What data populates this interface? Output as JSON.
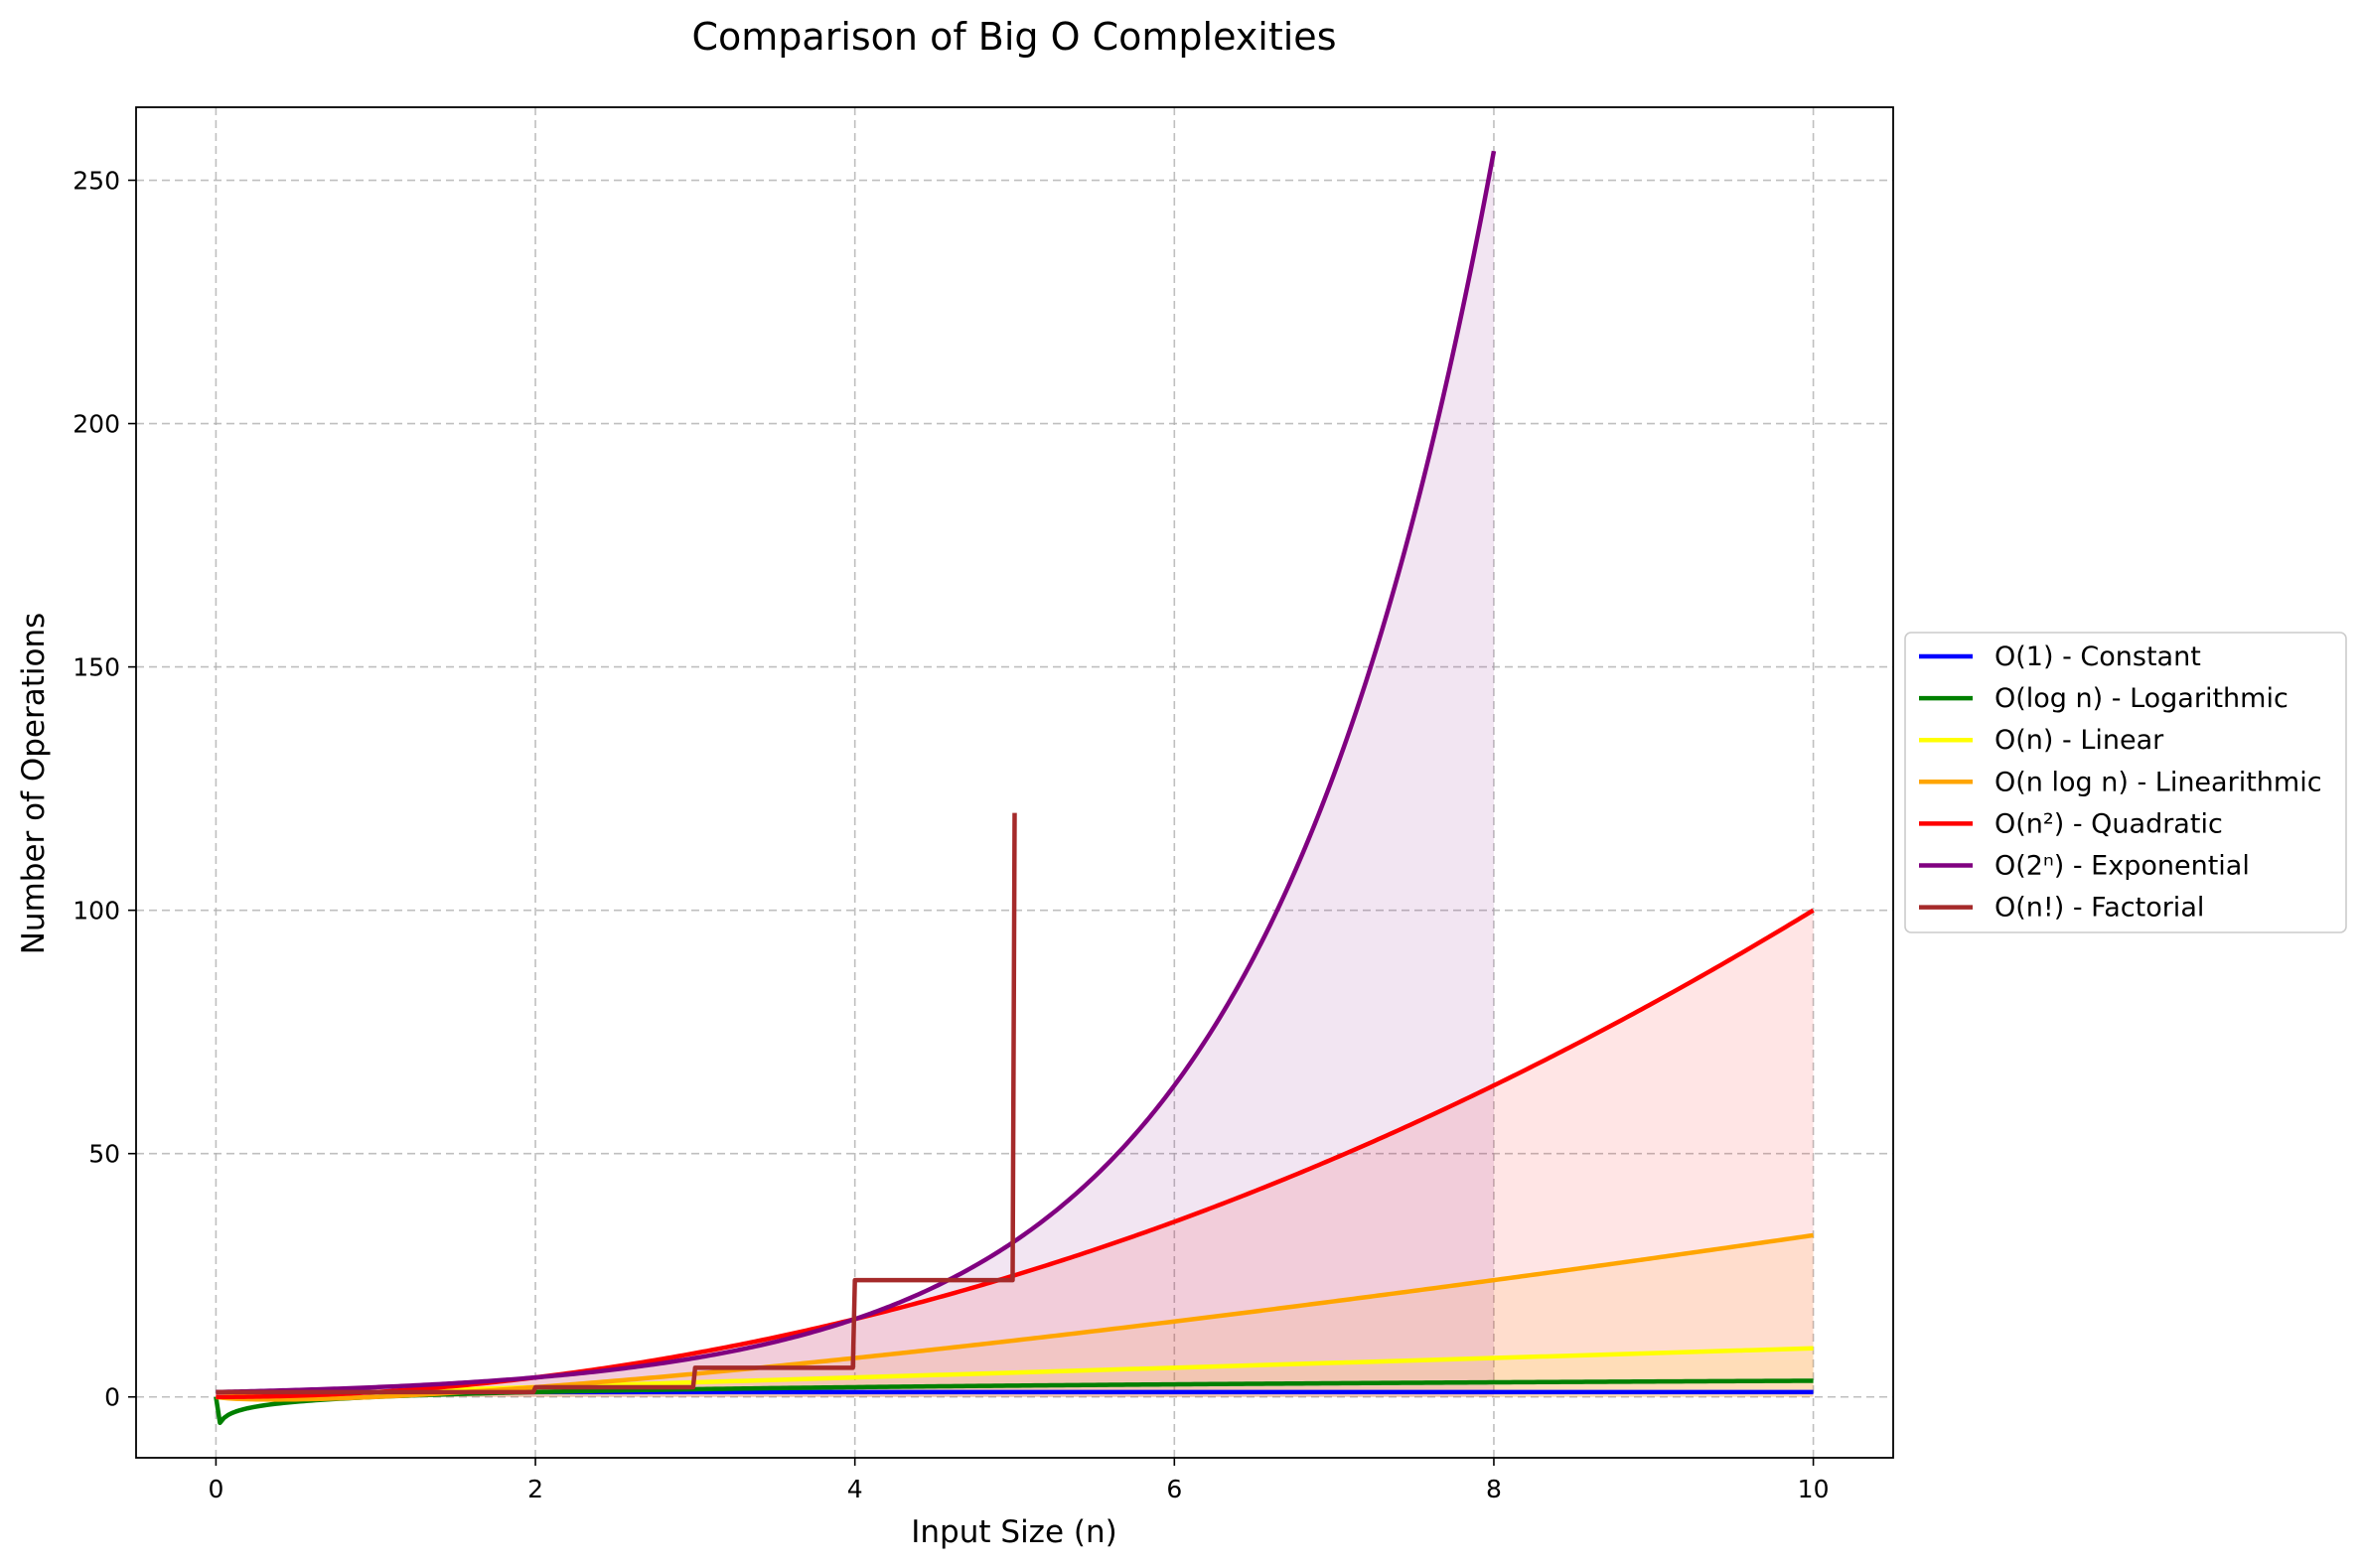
{
  "chart_data": {
    "type": "line",
    "title": "Comparison of Big O Complexities",
    "xlabel": "Input Size (n)",
    "ylabel": "Number of Operations",
    "xlim": [
      -0.5,
      10.5
    ],
    "ylim": [
      -12.5,
      265
    ],
    "xticks": [
      0,
      2,
      4,
      6,
      8,
      10
    ],
    "yticks": [
      0,
      50,
      100,
      150,
      200,
      250
    ],
    "grid": true,
    "legend_position": "outside-right",
    "series": [
      {
        "name": "O(1) - Constant",
        "color": "#0000ff",
        "formula": "constant",
        "domain": [
          0,
          10
        ],
        "fill": false,
        "x": [
          0,
          10
        ],
        "y": [
          1,
          1
        ]
      },
      {
        "name": "O(log n) - Logarithmic",
        "color": "#008000",
        "formula": "log",
        "domain": [
          0,
          10
        ],
        "fill": false,
        "x": [
          0,
          1,
          2,
          4,
          6,
          8,
          10
        ],
        "y": [
          0,
          1,
          1.58,
          2.32,
          2.81,
          3.17,
          3.46
        ]
      },
      {
        "name": "O(n) - Linear",
        "color": "#ffff00",
        "formula": "linear",
        "domain": [
          0,
          10
        ],
        "fill": true,
        "fill_opacity": 0.1,
        "x": [
          0,
          10
        ],
        "y": [
          0,
          10
        ]
      },
      {
        "name": "O(n log n) - Linearithmic",
        "color": "#ffa500",
        "formula": "nlogn",
        "domain": [
          0,
          10
        ],
        "fill": true,
        "fill_opacity": 0.1,
        "x": [
          0,
          2,
          4,
          6,
          8,
          10
        ],
        "y": [
          0,
          2,
          9.3,
          16.8,
          25.4,
          34.6
        ]
      },
      {
        "name": "O(n²) - Quadratic",
        "color": "#ff0000",
        "formula": "quadratic",
        "domain": [
          0,
          10
        ],
        "fill": true,
        "fill_opacity": 0.1,
        "x": [
          0,
          2,
          4,
          6,
          8,
          10
        ],
        "y": [
          0,
          4,
          16,
          36,
          64,
          100
        ]
      },
      {
        "name": "O(2ⁿ) - Exponential",
        "color": "#800080",
        "formula": "exponential",
        "domain": [
          0,
          8
        ],
        "fill": true,
        "fill_opacity": 0.1,
        "x": [
          0,
          2,
          4,
          6,
          8
        ],
        "y": [
          1,
          4,
          16,
          64,
          256
        ]
      },
      {
        "name": "O(n!) - Factorial",
        "color": "#a52a2a",
        "formula": "factorial",
        "domain": [
          0,
          5
        ],
        "fill": false,
        "x": [
          0,
          1,
          2,
          3,
          4,
          5
        ],
        "y": [
          1,
          1,
          2,
          6,
          24,
          120
        ]
      }
    ]
  }
}
